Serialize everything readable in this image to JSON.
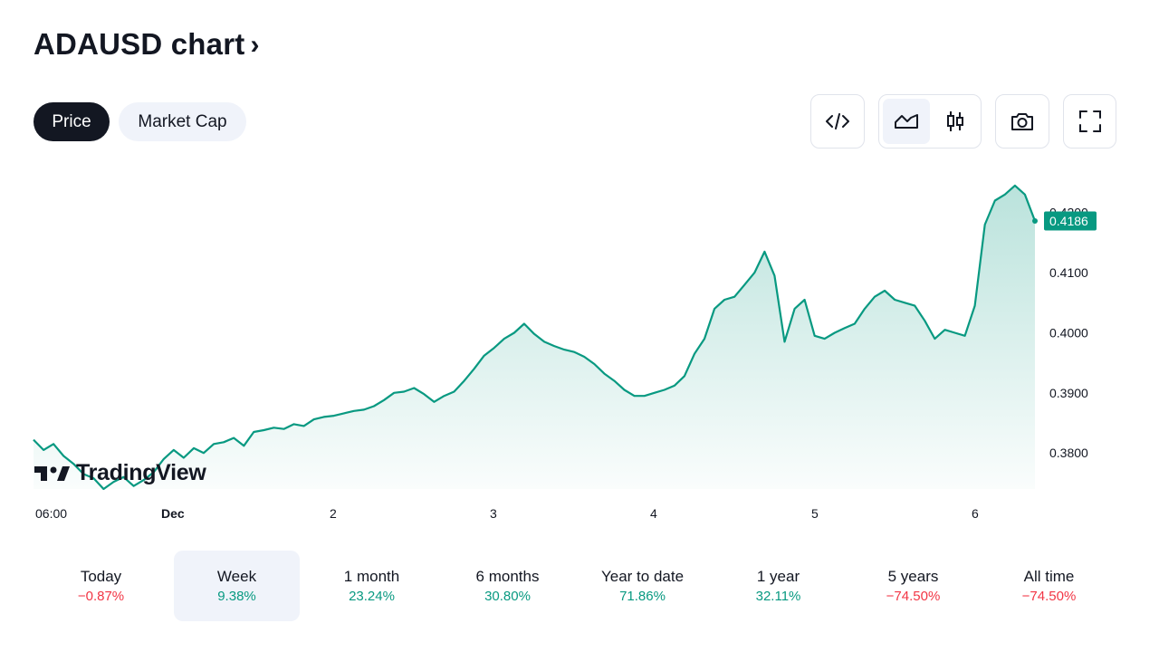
{
  "header": {
    "title": "ADAUSD chart",
    "chevron": "›"
  },
  "tabs": [
    {
      "label": "Price",
      "active": true
    },
    {
      "label": "Market Cap",
      "active": false
    }
  ],
  "toolbar": {
    "embed_icon": "code-icon",
    "area_icon": "area-chart-icon",
    "candle_icon": "candlestick-icon",
    "snapshot_icon": "camera-icon",
    "fullscreen_icon": "fullscreen-icon"
  },
  "brand": {
    "name": "TradingView"
  },
  "colors": {
    "line": "#089981",
    "negative": "#f23645",
    "text": "#131722",
    "selected_bg": "#f0f3fa"
  },
  "chart_data": {
    "type": "area",
    "symbol": "ADAUSD",
    "xticks": [
      "06:00",
      "Dec",
      "2",
      "3",
      "4",
      "5",
      "6"
    ],
    "yticks": [
      "0.3800",
      "0.3900",
      "0.4000",
      "0.4100",
      "0.4200"
    ],
    "ylim": [
      0.3725,
      0.429
    ],
    "last_price": "0.4186",
    "x_range": [
      0,
      100
    ],
    "points": [
      [
        0,
        0.3822
      ],
      [
        1,
        0.3805
      ],
      [
        2,
        0.3815
      ],
      [
        3,
        0.3795
      ],
      [
        4,
        0.3782
      ],
      [
        5,
        0.3765
      ],
      [
        6,
        0.3758
      ],
      [
        7,
        0.374
      ],
      [
        8,
        0.3752
      ],
      [
        9,
        0.376
      ],
      [
        10,
        0.3745
      ],
      [
        11,
        0.3755
      ],
      [
        12,
        0.3768
      ],
      [
        13,
        0.379
      ],
      [
        14,
        0.3805
      ],
      [
        15,
        0.3792
      ],
      [
        16,
        0.3808
      ],
      [
        17,
        0.38
      ],
      [
        18,
        0.3815
      ],
      [
        19,
        0.3818
      ],
      [
        20,
        0.3825
      ],
      [
        21,
        0.3812
      ],
      [
        22,
        0.3835
      ],
      [
        23,
        0.3838
      ],
      [
        24,
        0.3842
      ],
      [
        25,
        0.384
      ],
      [
        26,
        0.3848
      ],
      [
        27,
        0.3845
      ],
      [
        28,
        0.3856
      ],
      [
        29,
        0.386
      ],
      [
        30,
        0.3862
      ],
      [
        31,
        0.3866
      ],
      [
        32,
        0.387
      ],
      [
        33,
        0.3872
      ],
      [
        34,
        0.3878
      ],
      [
        35,
        0.3888
      ],
      [
        36,
        0.39
      ],
      [
        37,
        0.3902
      ],
      [
        38,
        0.3908
      ],
      [
        39,
        0.3898
      ],
      [
        40,
        0.3885
      ],
      [
        41,
        0.3895
      ],
      [
        42,
        0.3902
      ],
      [
        43,
        0.392
      ],
      [
        44,
        0.394
      ],
      [
        45,
        0.3962
      ],
      [
        46,
        0.3975
      ],
      [
        47,
        0.399
      ],
      [
        48,
        0.4
      ],
      [
        49,
        0.4015
      ],
      [
        50,
        0.3998
      ],
      [
        51,
        0.3985
      ],
      [
        52,
        0.3978
      ],
      [
        53,
        0.3972
      ],
      [
        54,
        0.3968
      ],
      [
        55,
        0.396
      ],
      [
        56,
        0.3948
      ],
      [
        57,
        0.3932
      ],
      [
        58,
        0.392
      ],
      [
        59,
        0.3905
      ],
      [
        60,
        0.3895
      ],
      [
        61,
        0.3895
      ],
      [
        62,
        0.39
      ],
      [
        63,
        0.3905
      ],
      [
        64,
        0.3912
      ],
      [
        65,
        0.3928
      ],
      [
        66,
        0.3965
      ],
      [
        67,
        0.399
      ],
      [
        68,
        0.404
      ],
      [
        69,
        0.4055
      ],
      [
        70,
        0.406
      ],
      [
        71,
        0.408
      ],
      [
        72,
        0.41
      ],
      [
        73,
        0.4135
      ],
      [
        74,
        0.4095
      ],
      [
        75,
        0.3985
      ],
      [
        76,
        0.404
      ],
      [
        77,
        0.4055
      ],
      [
        78,
        0.3995
      ],
      [
        79,
        0.399
      ],
      [
        80,
        0.4
      ],
      [
        81,
        0.4008
      ],
      [
        82,
        0.4015
      ],
      [
        83,
        0.404
      ],
      [
        84,
        0.406
      ],
      [
        85,
        0.407
      ],
      [
        86,
        0.4055
      ],
      [
        87,
        0.405
      ],
      [
        88,
        0.4045
      ],
      [
        89,
        0.402
      ],
      [
        90,
        0.399
      ],
      [
        91,
        0.4005
      ],
      [
        92,
        0.4
      ],
      [
        93,
        0.3995
      ],
      [
        94,
        0.4045
      ],
      [
        95,
        0.418
      ],
      [
        96,
        0.422
      ],
      [
        97,
        0.423
      ],
      [
        98,
        0.4245
      ],
      [
        99,
        0.423
      ],
      [
        100,
        0.4186
      ]
    ]
  },
  "periods": [
    {
      "label": "Today",
      "value": "−0.87%",
      "trend": "negative",
      "selected": false
    },
    {
      "label": "Week",
      "value": "9.38%",
      "trend": "positive",
      "selected": true
    },
    {
      "label": "1 month",
      "value": "23.24%",
      "trend": "positive",
      "selected": false
    },
    {
      "label": "6 months",
      "value": "30.80%",
      "trend": "positive",
      "selected": false
    },
    {
      "label": "Year to date",
      "value": "71.86%",
      "trend": "positive",
      "selected": false
    },
    {
      "label": "1 year",
      "value": "32.11%",
      "trend": "positive",
      "selected": false
    },
    {
      "label": "5 years",
      "value": "−74.50%",
      "trend": "negative",
      "selected": false
    },
    {
      "label": "All time",
      "value": "−74.50%",
      "trend": "negative",
      "selected": false
    }
  ]
}
